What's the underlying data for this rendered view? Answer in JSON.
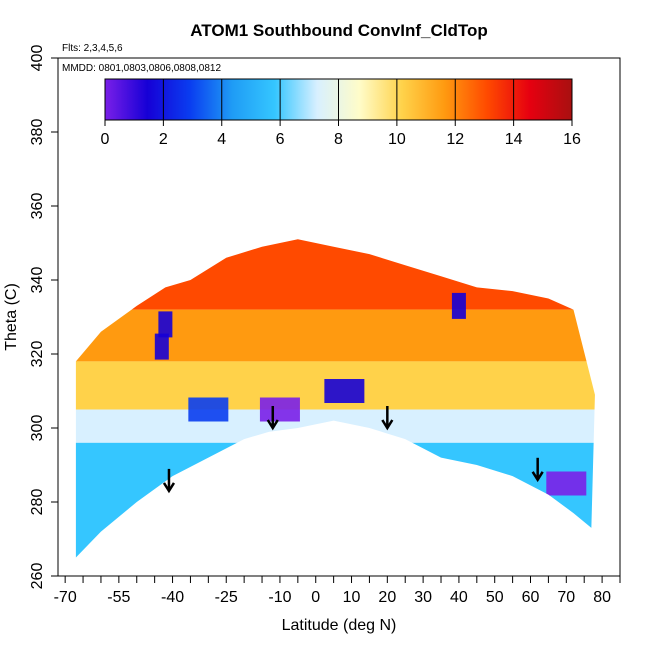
{
  "chart_data": {
    "type": "heatmap",
    "title": "ATOM1 Southbound ConvInf_CldTop",
    "subtitle_flights": "Flts: 2,3,4,5,6",
    "subtitle_dates": "MMDD: 0801,0803,0806,0808,0812",
    "xlabel": "Latitude (deg N)",
    "ylabel": "Theta (C)",
    "xlim": [
      -72,
      85
    ],
    "ylim": [
      260,
      400
    ],
    "x_tick_labels": [
      "-70",
      "-55",
      "-40",
      "-25",
      "-10",
      "0",
      "10",
      "20",
      "30",
      "40",
      "50",
      "60",
      "70",
      "80"
    ],
    "x_tick_values": [
      -70,
      -55,
      -40,
      -25,
      -10,
      0,
      10,
      20,
      30,
      40,
      50,
      60,
      70,
      80
    ],
    "y_tick_values": [
      260,
      280,
      300,
      320,
      340,
      360,
      380,
      400
    ],
    "y_tick_labels": [
      "260",
      "280",
      "300",
      "320",
      "340",
      "360",
      "380",
      "400"
    ],
    "colorbar": {
      "range": [
        0,
        16
      ],
      "tick_labels": [
        "0",
        "2",
        "4",
        "6",
        "8",
        "10",
        "12",
        "14",
        "16"
      ],
      "colors": [
        "#7a1fe8",
        "#1600d6",
        "#0a3df0",
        "#1f9cf5",
        "#35c6ff",
        "#d8f0ff",
        "#fffcc8",
        "#ffd24a",
        "#ff9a10",
        "#ff4a00",
        "#e60010",
        "#a81010"
      ]
    },
    "boundary": {
      "lower_theta": [
        {
          "lat": -67,
          "theta": 265
        },
        {
          "lat": -60,
          "theta": 272
        },
        {
          "lat": -50,
          "theta": 280
        },
        {
          "lat": -40,
          "theta": 287
        },
        {
          "lat": -30,
          "theta": 292
        },
        {
          "lat": -20,
          "theta": 297
        },
        {
          "lat": -13,
          "theta": 299
        },
        {
          "lat": -5,
          "theta": 300
        },
        {
          "lat": 5,
          "theta": 302
        },
        {
          "lat": 15,
          "theta": 300
        },
        {
          "lat": 25,
          "theta": 297
        },
        {
          "lat": 35,
          "theta": 292
        },
        {
          "lat": 45,
          "theta": 290
        },
        {
          "lat": 55,
          "theta": 287
        },
        {
          "lat": 65,
          "theta": 282
        },
        {
          "lat": 72,
          "theta": 277
        },
        {
          "lat": 77,
          "theta": 273
        }
      ],
      "upper_theta": [
        {
          "lat": -67,
          "theta": 318
        },
        {
          "lat": -60,
          "theta": 326
        },
        {
          "lat": -50,
          "theta": 333
        },
        {
          "lat": -42,
          "theta": 338
        },
        {
          "lat": -35,
          "theta": 340
        },
        {
          "lat": -25,
          "theta": 346
        },
        {
          "lat": -15,
          "theta": 349
        },
        {
          "lat": -5,
          "theta": 351
        },
        {
          "lat": 5,
          "theta": 349
        },
        {
          "lat": 15,
          "theta": 347
        },
        {
          "lat": 25,
          "theta": 344
        },
        {
          "lat": 35,
          "theta": 341
        },
        {
          "lat": 45,
          "theta": 338
        },
        {
          "lat": 55,
          "theta": 337
        },
        {
          "lat": 65,
          "theta": 335
        },
        {
          "lat": 72,
          "theta": 332
        },
        {
          "lat": 78,
          "theta": 309
        }
      ]
    },
    "fill_bands": [
      {
        "theta_from": 332,
        "theta_to": 352,
        "value": 13
      },
      {
        "theta_from": 318,
        "theta_to": 332,
        "value": 11.5
      },
      {
        "theta_from": 305,
        "theta_to": 318,
        "value": 9.5
      },
      {
        "theta_from": 296,
        "theta_to": 305,
        "value": 7.5
      },
      {
        "theta_from": 280,
        "theta_to": 296,
        "value": 6.5
      },
      {
        "theta_from": 262,
        "theta_to": 280,
        "value": 5.5
      }
    ],
    "features": [
      {
        "lat": -42,
        "theta": 328,
        "value": 2,
        "label": "blue patch"
      },
      {
        "lat": -43,
        "theta": 322,
        "value": 2.5,
        "label": "blue patch"
      },
      {
        "lat": -10,
        "theta": 305,
        "value": 1,
        "label": "low-cloud-top region"
      },
      {
        "lat": 8,
        "theta": 310,
        "value": 1.5,
        "label": "low-cloud-top region"
      },
      {
        "lat": 40,
        "theta": 333,
        "value": 2.5,
        "label": "blue patch"
      },
      {
        "lat": 70,
        "theta": 285,
        "value": 1,
        "label": "low-cloud-top region"
      },
      {
        "lat": -30,
        "theta": 305,
        "value": 3,
        "label": "low-cloud-top region"
      }
    ],
    "arrows": [
      {
        "lat": -41,
        "theta": 283
      },
      {
        "lat": -12,
        "theta": 300
      },
      {
        "lat": 20,
        "theta": 300
      },
      {
        "lat": 62,
        "theta": 286
      }
    ]
  }
}
